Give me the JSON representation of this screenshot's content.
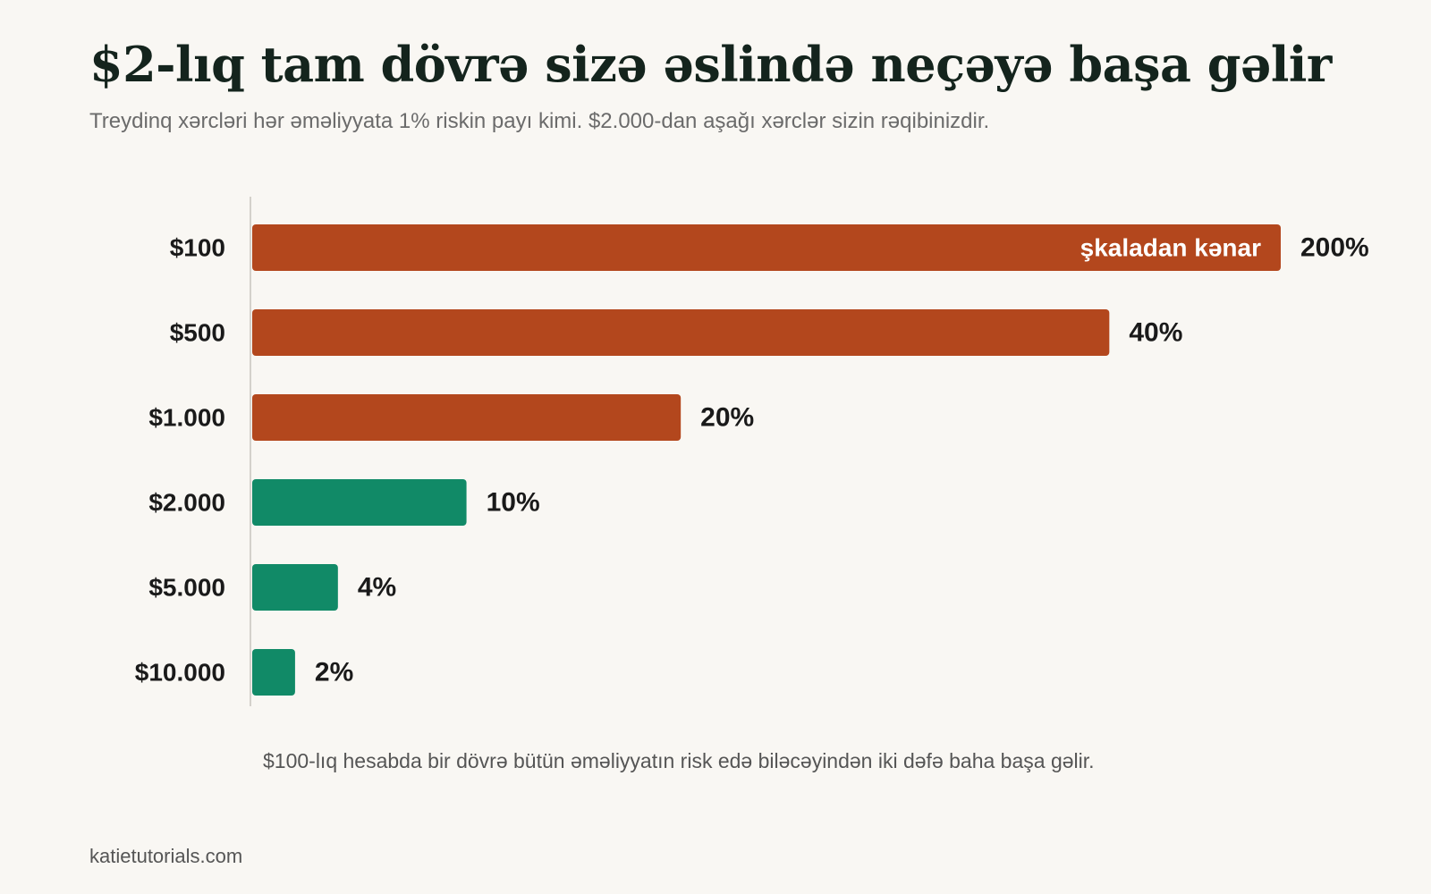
{
  "header": {
    "title": "$2-lıq tam dövrə sizə əslində neçəyə başa gəlir",
    "subtitle": "Treydinq xərcləri hər əməliyyata 1% riskin payı kimi. $2.000-dan aşağı xərclər sizin rəqibinizdir."
  },
  "note": "$100-lıq hesabda bir dövrə bütün əməliyyatın risk edə biləcəyindən iki dəfə baha başa gəlir.",
  "footer": "katietutorials.com",
  "chart_data": {
    "type": "bar",
    "orientation": "horizontal",
    "categories": [
      "$100",
      "$500",
      "$1.000",
      "$2.000",
      "$5.000",
      "$10.000"
    ],
    "values": [
      200,
      40,
      20,
      10,
      4,
      2
    ],
    "value_labels": [
      "200%",
      "40%",
      "20%",
      "10%",
      "4%",
      "2%"
    ],
    "unit": "%",
    "clipped": [
      true,
      false,
      false,
      false,
      false,
      false
    ],
    "inside_labels": [
      "şkaladan kənar",
      "",
      "",
      "",
      "",
      ""
    ],
    "xlim": [
      0,
      48
    ],
    "grid": false,
    "colors": [
      "#b3471d",
      "#b3471d",
      "#b3471d",
      "#118a67",
      "#118a67",
      "#118a67"
    ],
    "palette": {
      "high_cost": "#b3471d",
      "low_cost": "#118a67",
      "axis": "#d4d1cb"
    }
  }
}
